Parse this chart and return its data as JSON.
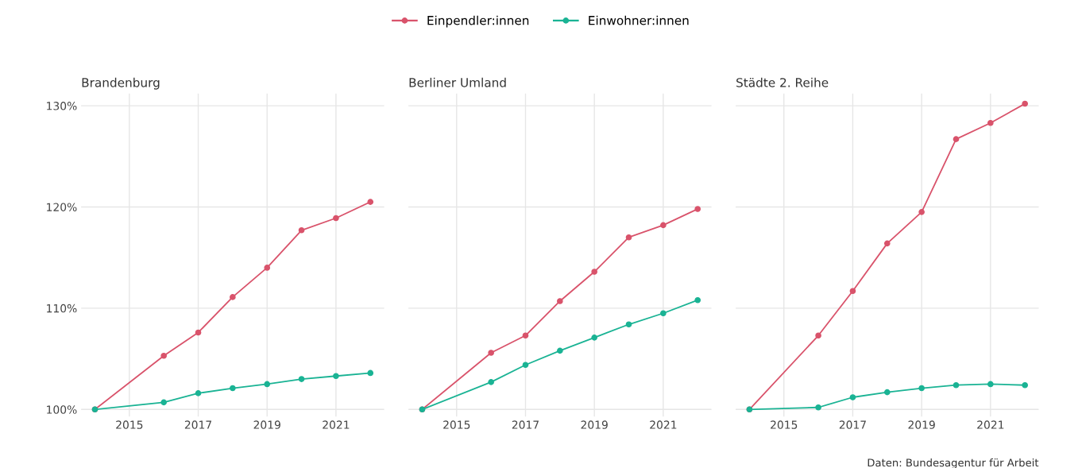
{
  "chart_data": [
    {
      "type": "line",
      "title": "Brandenburg",
      "x": [
        2014,
        2016,
        2017,
        2018,
        2019,
        2020,
        2021,
        2022
      ],
      "xlim": [
        2013.6,
        2022.4
      ],
      "xticks": [
        2015,
        2017,
        2019,
        2021
      ],
      "ylim": [
        99.3,
        131.2
      ],
      "yticks": [
        {
          "value": 100,
          "label": "100%"
        },
        {
          "value": 110,
          "label": "110%"
        },
        {
          "value": 120,
          "label": "120%"
        },
        {
          "value": 130,
          "label": "130%"
        }
      ],
      "grid": true,
      "legend": "top",
      "marker": "circle",
      "series": [
        {
          "name": "Einpendler:innen",
          "color": "#d9536b",
          "values": [
            100,
            105.3,
            107.6,
            111.1,
            114.0,
            117.7,
            118.9,
            120.5
          ]
        },
        {
          "name": "Einwohner:innen",
          "color": "#1ab394",
          "values": [
            100,
            100.7,
            101.6,
            102.1,
            102.5,
            103.0,
            103.3,
            103.6
          ]
        }
      ]
    },
    {
      "type": "line",
      "title": "Berliner Umland",
      "x": [
        2014,
        2016,
        2017,
        2018,
        2019,
        2020,
        2021,
        2022
      ],
      "xlim": [
        2013.6,
        2022.4
      ],
      "xticks": [
        2015,
        2017,
        2019,
        2021
      ],
      "ylim": [
        99.3,
        131.2
      ],
      "yticks": [
        100,
        110,
        120,
        130
      ],
      "tick_labels": "x",
      "grid": true,
      "marker": "circle",
      "series": [
        {
          "color": "#d9536b",
          "values": [
            100,
            105.6,
            107.3,
            110.7,
            113.6,
            117.0,
            118.2,
            119.8
          ]
        },
        {
          "color": "#1ab394",
          "values": [
            100,
            102.7,
            104.4,
            105.8,
            107.1,
            108.4,
            109.5,
            110.8
          ]
        }
      ]
    },
    {
      "type": "line",
      "title": "Städte 2. Reihe",
      "x": [
        2014,
        2016,
        2017,
        2018,
        2019,
        2020,
        2021,
        2022
      ],
      "xlim": [
        2013.6,
        2022.4
      ],
      "xticks": [
        2015,
        2017,
        2019,
        2021
      ],
      "ylim": [
        99.3,
        131.2
      ],
      "yticks": [
        100,
        110,
        120,
        130
      ],
      "tick_labels": "x",
      "grid": true,
      "marker": "circle",
      "annotations": [
        "Daten: Bundesagentur für Arbeit"
      ],
      "series": [
        {
          "color": "#d9536b",
          "values": [
            100,
            107.3,
            111.7,
            116.4,
            119.5,
            126.7,
            128.3,
            130.2
          ]
        },
        {
          "color": "#1ab394",
          "values": [
            100,
            100.2,
            101.2,
            101.7,
            102.1,
            102.4,
            102.5,
            102.4
          ]
        }
      ]
    }
  ]
}
